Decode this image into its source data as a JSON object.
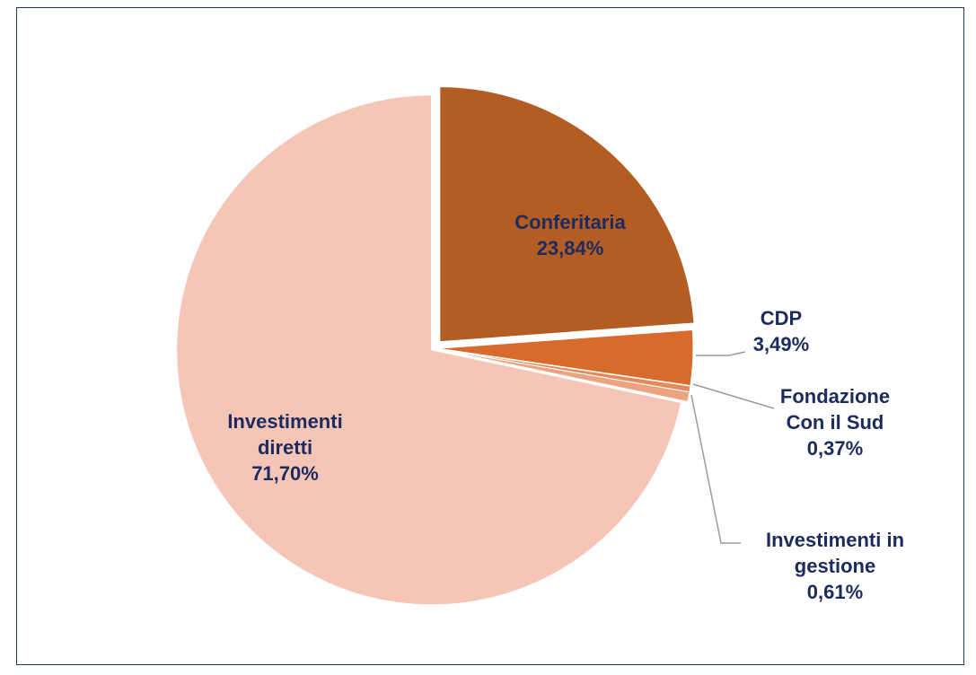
{
  "chart_data": {
    "type": "pie",
    "categories": [
      "Conferitaria",
      "CDP",
      "Fondazione Con il Sud",
      "Investimenti in gestione",
      "Investimenti diretti"
    ],
    "values": [
      23.84,
      3.49,
      0.37,
      0.61,
      71.7
    ],
    "value_labels": [
      "23,84%",
      "3,49%",
      "0,37%",
      "0,61%",
      "71,70%"
    ],
    "colors": [
      "#b35c23",
      "#d76b2c",
      "#e38a5c",
      "#eca37f",
      "#f5c6b8"
    ]
  }
}
